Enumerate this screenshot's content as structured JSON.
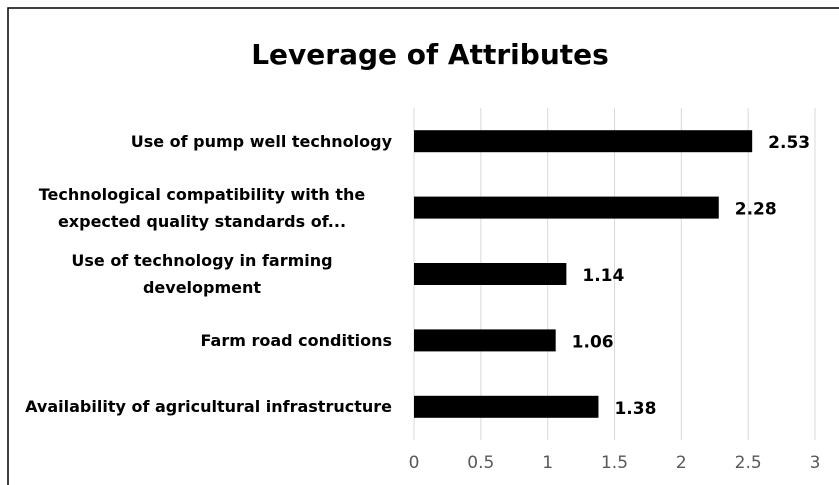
{
  "chart_data": {
    "type": "bar",
    "orientation": "horizontal",
    "title": "Leverage of Attributes",
    "categories": [
      "Use of pump well technology",
      "Technological compatibility with the expected quality standards of...",
      "Use of technology in farming development",
      "Farm road conditions",
      "Availability of agricultural infrastructure"
    ],
    "values": [
      2.53,
      2.28,
      1.14,
      1.06,
      1.38
    ],
    "color": "#000000",
    "xlim": [
      0,
      3
    ],
    "xticks": [
      0,
      0.5,
      1,
      1.5,
      2,
      2.5,
      3
    ],
    "grid": true
  }
}
